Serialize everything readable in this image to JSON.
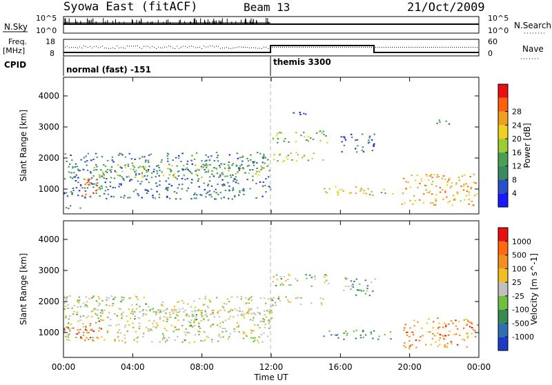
{
  "header": {
    "title": "Syowa East (fitACF)",
    "beam": "Beam 13",
    "date": "21/Oct/2009"
  },
  "panels": {
    "nsky": {
      "label": "N.Sky",
      "tick_top": "10^5",
      "tick_bottom": "10^0",
      "right_label": "N.Search",
      "right_tick_top": "10^5",
      "right_tick_bottom": "10^0"
    },
    "freq": {
      "label_line1": "Freq.",
      "label_line2": "[MHz]",
      "tick_top": "18",
      "tick_bottom": "8",
      "right_label": "Nave",
      "right_tick_top": "60",
      "right_tick_bottom": "0"
    },
    "cpid": {
      "label": "CPID",
      "segments": [
        {
          "name": "normal (fast) -151",
          "start_hour": 0,
          "end_hour": 12
        },
        {
          "name": "themis 3300",
          "start_hour": 12,
          "end_hour": 24
        }
      ]
    }
  },
  "chart_data": [
    {
      "type": "heatmap",
      "title": "Power",
      "ylabel": "Slant Range [km]",
      "xlabel": "Time UT",
      "xlim_hours": [
        0,
        24
      ],
      "ylim": [
        200,
        4600
      ],
      "yticks": [
        "1000",
        "2000",
        "3000",
        "4000"
      ],
      "colorbar": {
        "label": "Power [dB]",
        "ticks": [
          "4",
          "8",
          "12",
          "16",
          "20",
          "24",
          "28"
        ],
        "colors": [
          "#1a1aff",
          "#2a50c8",
          "#3a8a60",
          "#4aa050",
          "#9ccc30",
          "#f0d020",
          "#f0a020",
          "#ff6010",
          "#e81010"
        ]
      },
      "clusters": [
        {
          "t0": 0.0,
          "t1": 12.0,
          "r0": 700,
          "r1": 2200,
          "level": 0.25
        },
        {
          "t0": 0.9,
          "t1": 2.0,
          "r0": 750,
          "r1": 1400,
          "level": 0.75
        },
        {
          "t0": 1.5,
          "t1": 12.0,
          "r0": 1400,
          "r1": 1800,
          "level": 0.45
        },
        {
          "t0": 0.0,
          "t1": 1.0,
          "r0": 350,
          "r1": 500,
          "level": 0.3
        },
        {
          "t0": 12.0,
          "t1": 15.3,
          "r0": 2500,
          "r1": 2900,
          "level": 0.45
        },
        {
          "t0": 12.0,
          "t1": 15.0,
          "r0": 1900,
          "r1": 2200,
          "level": 0.55
        },
        {
          "t0": 13.0,
          "t1": 14.5,
          "r0": 3350,
          "r1": 3500,
          "level": 0.2
        },
        {
          "t0": 15.0,
          "t1": 19.0,
          "r0": 800,
          "r1": 1100,
          "level": 0.6
        },
        {
          "t0": 19.5,
          "t1": 24.0,
          "r0": 500,
          "r1": 1500,
          "level": 0.7
        },
        {
          "t0": 16.0,
          "t1": 18.0,
          "r0": 2200,
          "r1": 2800,
          "level": 0.2
        },
        {
          "t0": 21.5,
          "t1": 22.5,
          "r0": 3100,
          "r1": 3300,
          "level": 0.3
        }
      ]
    },
    {
      "type": "heatmap",
      "title": "Velocity",
      "ylabel": "Slant Range [km]",
      "xlabel": "Time UT",
      "xlim_hours": [
        0,
        24
      ],
      "ylim": [
        200,
        4600
      ],
      "yticks": [
        "1000",
        "2000",
        "3000",
        "4000"
      ],
      "xticks": [
        "00:00",
        "04:00",
        "08:00",
        "12:00",
        "16:00",
        "20:00",
        "00:00"
      ],
      "colorbar": {
        "label": "Velocity [m s^-1]",
        "ticks": [
          "1000",
          "500",
          "100",
          "25",
          "-25",
          "-100",
          "-500",
          "-1000"
        ],
        "colors": [
          "#1a3cc8",
          "#3070b0",
          "#3a8a50",
          "#70c040",
          "#c0c0c0",
          "#f0c020",
          "#f09020",
          "#ff6a10",
          "#e81010"
        ]
      },
      "clusters": [
        {
          "t0": 0.0,
          "t1": 12.0,
          "r0": 700,
          "r1": 2200,
          "level": 0.5
        },
        {
          "t0": 0.9,
          "t1": 2.2,
          "r0": 750,
          "r1": 1400,
          "level": 0.85
        },
        {
          "t0": 0.0,
          "t1": 1.0,
          "r0": 800,
          "r1": 1200,
          "level": 0.85
        },
        {
          "t0": 1.5,
          "t1": 12.0,
          "r0": 1400,
          "r1": 1800,
          "level": 0.48
        },
        {
          "t0": 12.0,
          "t1": 15.3,
          "r0": 2500,
          "r1": 2900,
          "level": 0.47
        },
        {
          "t0": 12.0,
          "t1": 15.0,
          "r0": 1900,
          "r1": 2200,
          "level": 0.47
        },
        {
          "t0": 15.0,
          "t1": 19.0,
          "r0": 800,
          "r1": 1100,
          "level": 0.3
        },
        {
          "t0": 19.5,
          "t1": 24.0,
          "r0": 500,
          "r1": 1500,
          "level": 0.75
        },
        {
          "t0": 16.0,
          "t1": 18.0,
          "r0": 2200,
          "r1": 2800,
          "level": 0.35
        }
      ]
    }
  ]
}
